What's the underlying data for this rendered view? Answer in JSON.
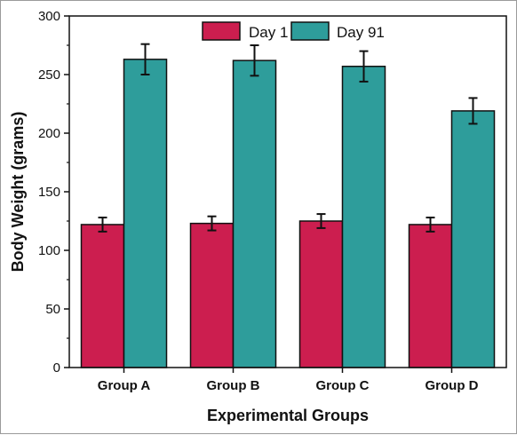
{
  "chart_data": {
    "type": "bar",
    "categories": [
      "Group A",
      "Group B",
      "Group C",
      "Group D"
    ],
    "series": [
      {
        "name": "Day 1",
        "color": "#CC1E4F",
        "values": [
          122,
          123,
          125,
          122
        ],
        "errors": [
          6,
          6,
          6,
          6
        ]
      },
      {
        "name": "Day 91",
        "color": "#2E9D9B",
        "values": [
          263,
          262,
          257,
          219
        ],
        "errors": [
          13,
          13,
          13,
          11
        ]
      }
    ],
    "title": "",
    "xlabel": "Experimental Groups",
    "ylabel": "Body Weight (grams)",
    "ylim": [
      0,
      300
    ],
    "yticks": [
      "0",
      "50",
      "100",
      "150",
      "200",
      "250",
      "300"
    ],
    "grid": false,
    "legend_position": "top-center"
  }
}
